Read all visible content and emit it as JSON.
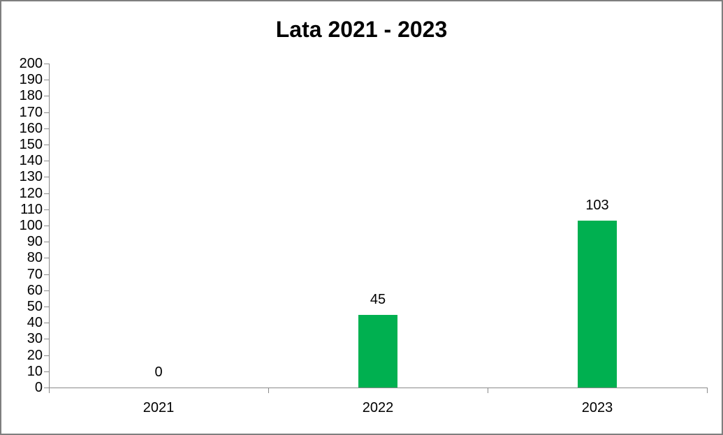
{
  "chart_data": {
    "type": "bar",
    "title": "Lata 2021 - 2023",
    "categories": [
      "2021",
      "2022",
      "2023"
    ],
    "values": [
      0,
      45,
      103
    ],
    "data_labels": [
      "0",
      "45",
      "103"
    ],
    "xlabel": "",
    "ylabel": "",
    "ylim": [
      0,
      200
    ],
    "ytick_step": 10,
    "grid": false,
    "legend": false,
    "bar_color": "#00B050",
    "axis_color": "#8A8A8A",
    "text_color": "#000000",
    "frame_border_color": "#7F7F7F",
    "background_color": "#FFFFFF"
  }
}
